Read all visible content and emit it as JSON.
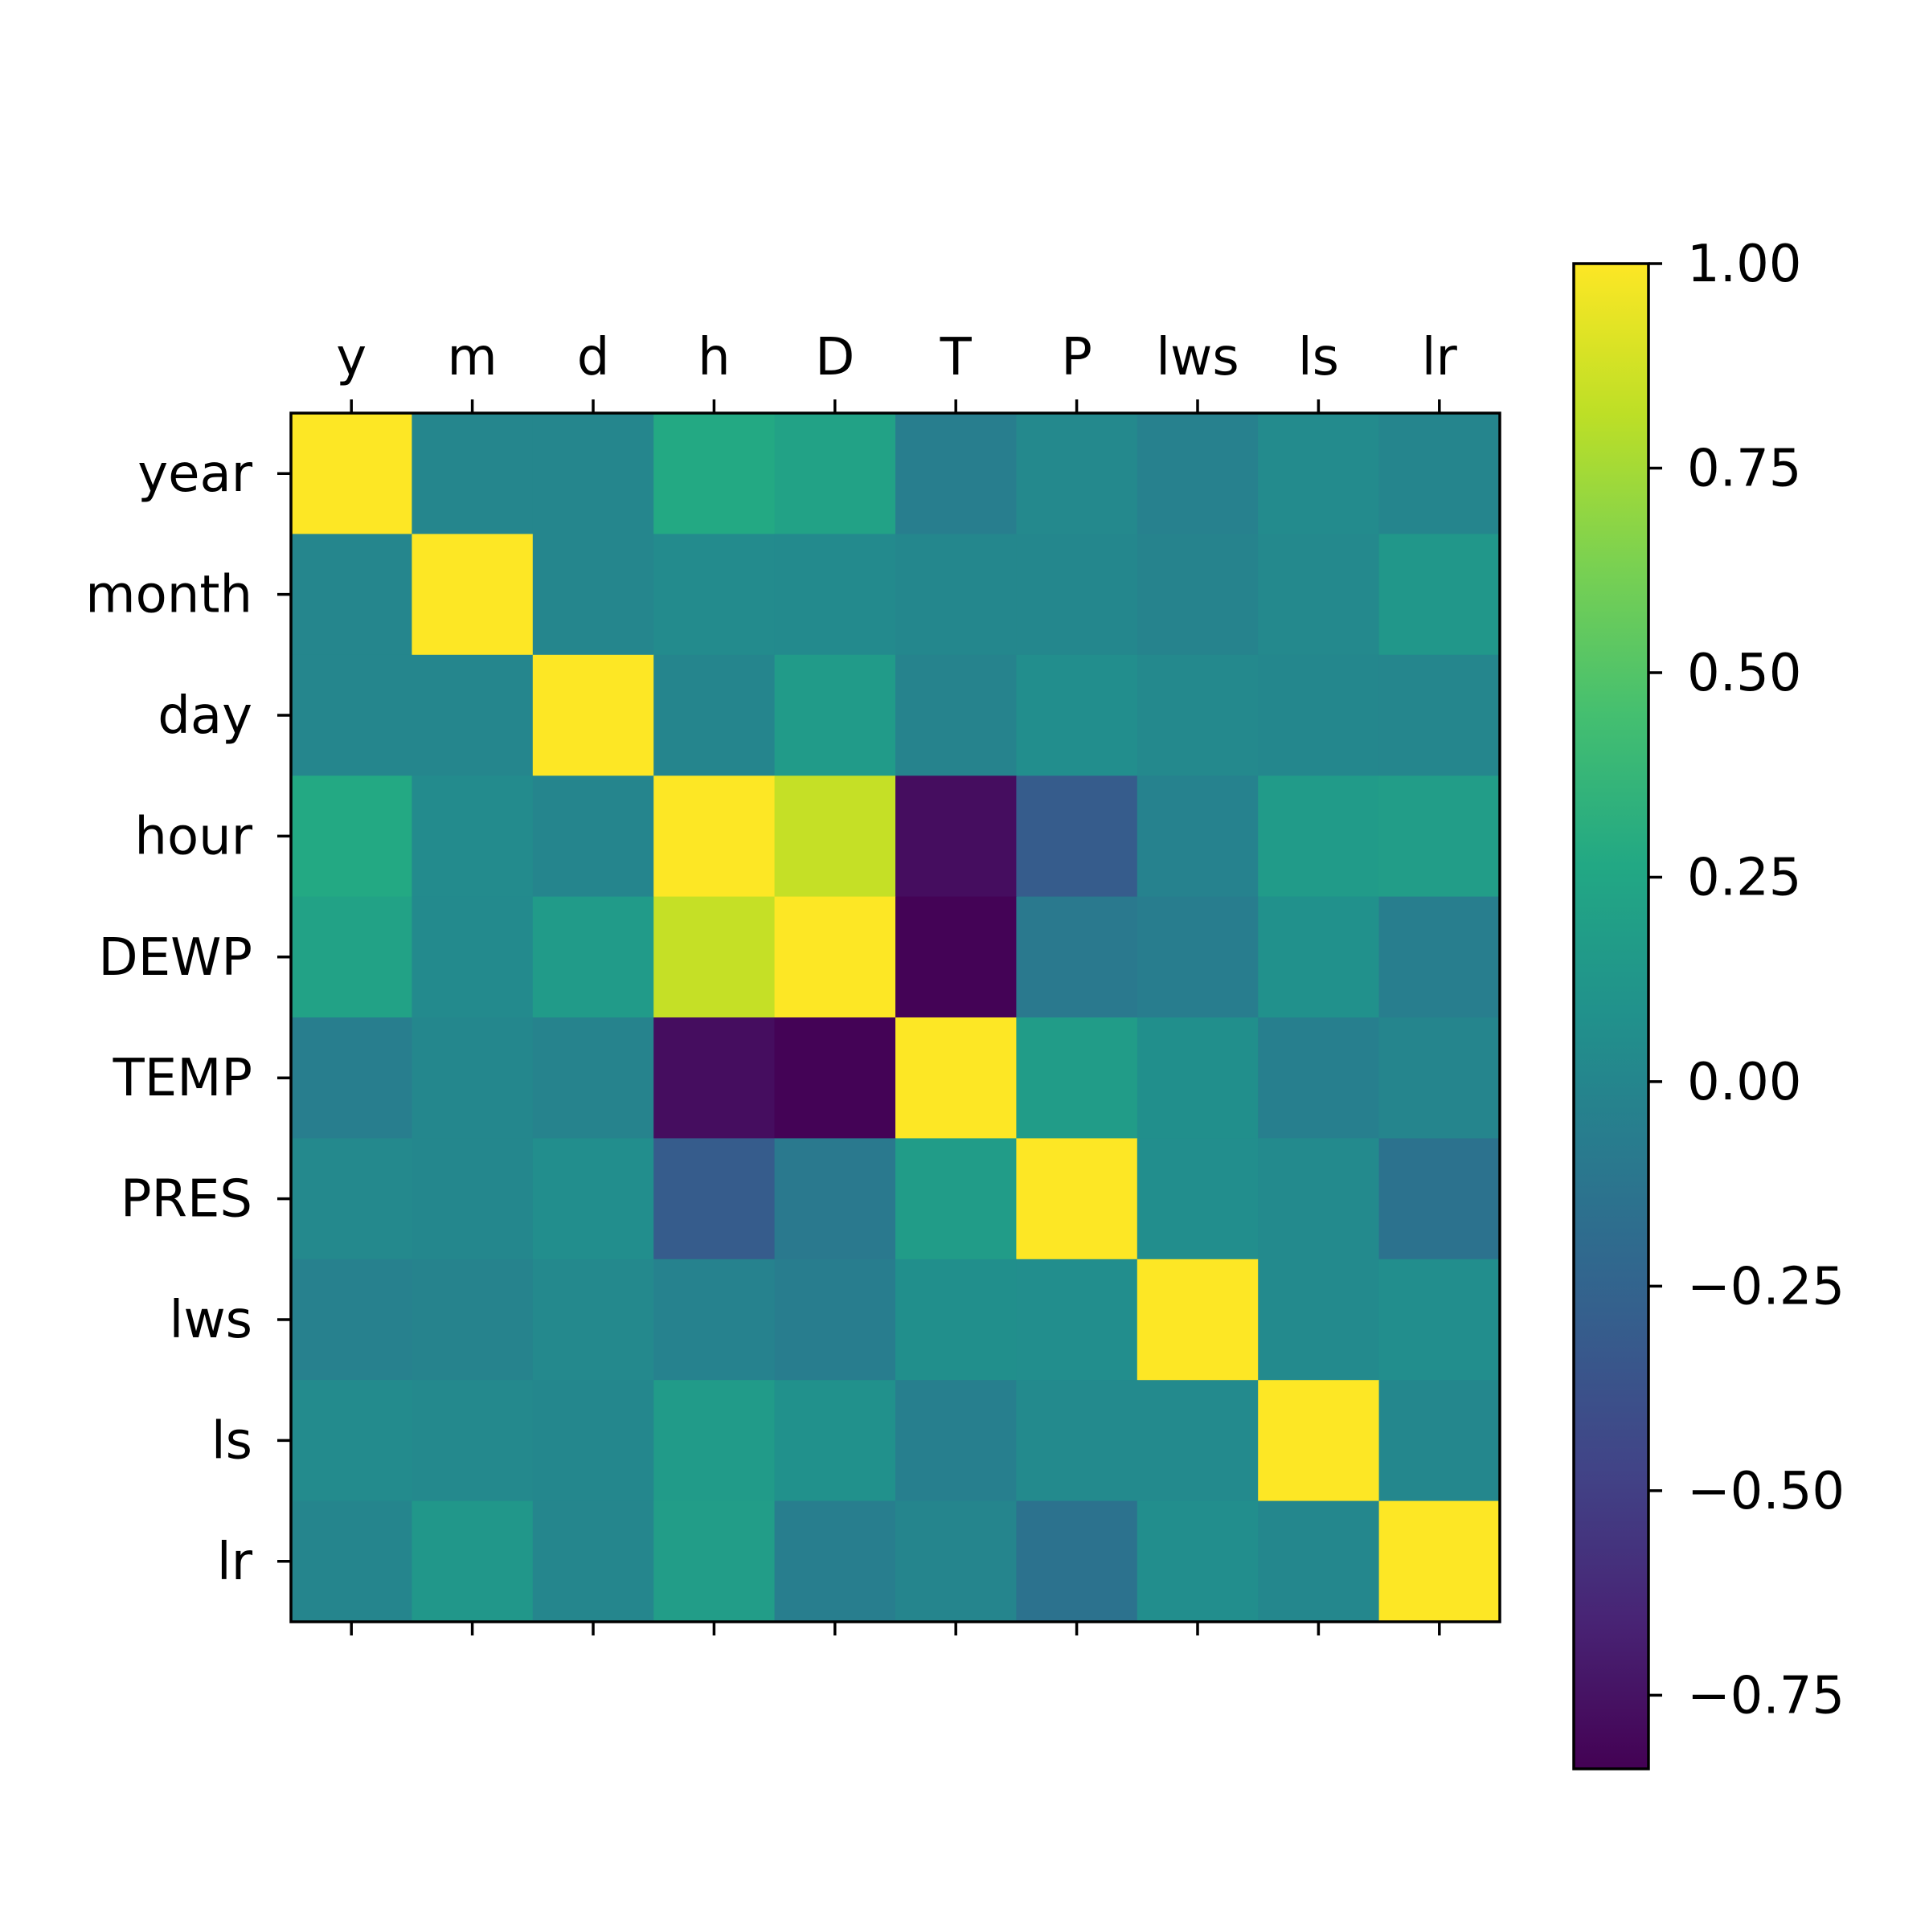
{
  "chart_data": {
    "type": "heatmap",
    "title": "",
    "xlabel": "",
    "ylabel": "",
    "x_tick_labels": [
      "y",
      "m",
      "d",
      "h",
      "D",
      "T",
      "P",
      "lws",
      "ls",
      "lr"
    ],
    "y_tick_labels": [
      "year",
      "month",
      "day",
      "hour",
      "DEWP",
      "TEMP",
      "PRES",
      "lws",
      "ls",
      "lr"
    ],
    "values": [
      [
        1.0,
        0.0,
        0.0,
        0.27,
        0.22,
        -0.06,
        0.02,
        -0.04,
        0.04,
        -0.01
      ],
      [
        0.0,
        1.0,
        0.0,
        0.04,
        0.03,
        0.01,
        0.01,
        -0.02,
        0.02,
        0.13
      ],
      [
        0.0,
        0.0,
        1.0,
        -0.01,
        0.16,
        -0.02,
        0.06,
        0.02,
        0.01,
        0.0
      ],
      [
        0.27,
        0.04,
        -0.01,
        1.0,
        0.84,
        -0.78,
        -0.31,
        -0.03,
        0.16,
        0.18
      ],
      [
        0.22,
        0.03,
        0.16,
        0.84,
        1.0,
        -0.83,
        -0.1,
        -0.07,
        0.08,
        -0.06
      ],
      [
        -0.06,
        0.01,
        -0.02,
        -0.78,
        -0.83,
        1.0,
        0.17,
        0.07,
        -0.05,
        -0.01
      ],
      [
        0.02,
        0.01,
        0.06,
        -0.31,
        -0.1,
        0.17,
        1.0,
        0.06,
        0.03,
        -0.15
      ],
      [
        -0.04,
        -0.02,
        0.02,
        -0.03,
        -0.07,
        0.07,
        0.06,
        1.0,
        0.03,
        0.06
      ],
      [
        0.04,
        0.02,
        0.01,
        0.16,
        0.08,
        -0.05,
        0.03,
        0.03,
        1.0,
        0.01
      ],
      [
        -0.01,
        0.13,
        0.0,
        0.18,
        -0.06,
        -0.01,
        -0.15,
        0.06,
        0.01,
        1.0
      ]
    ],
    "colormap": "viridis",
    "vmin": -0.84,
    "vmax": 1.0,
    "colorbar_ticks": [
      1.0,
      0.75,
      0.5,
      0.25,
      0.0,
      -0.25,
      -0.5,
      -0.75
    ],
    "colorbar_tick_labels": [
      "1.00",
      "0.75",
      "0.50",
      "0.25",
      "0.00",
      "−0.25",
      "−0.50",
      "−0.75"
    ],
    "x_ticks_position": "top",
    "grid": false
  }
}
